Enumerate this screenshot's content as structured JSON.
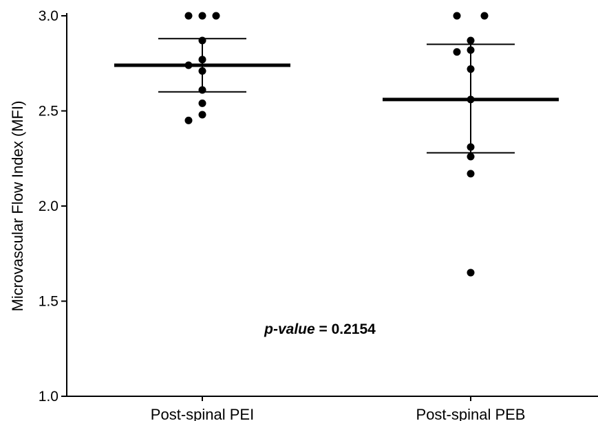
{
  "chart_data": {
    "type": "scatter",
    "ylabel": "Microvascular Flow Index (MFI)",
    "ylim": [
      1.0,
      3.0
    ],
    "yticks": [
      "1.0",
      "1.5",
      "2.0",
      "2.5",
      "3.0"
    ],
    "categories": [
      "Post-spinal PEI",
      "Post-spinal PEB"
    ],
    "groups": [
      {
        "category": "Post-spinal PEI",
        "mean": 2.74,
        "sd_low": 2.6,
        "sd_high": 2.88,
        "points": [
          3.0,
          3.0,
          3.0,
          2.87,
          2.77,
          2.74,
          2.71,
          2.61,
          2.54,
          2.48,
          2.45
        ]
      },
      {
        "category": "Post-spinal PEB",
        "mean": 2.56,
        "sd_low": 2.28,
        "sd_high": 2.85,
        "points": [
          3.0,
          3.0,
          2.87,
          2.82,
          2.81,
          2.72,
          2.56,
          2.31,
          2.26,
          2.17,
          1.65
        ]
      }
    ],
    "annotation": {
      "prefix": "p-value",
      "text": " = 0.2154"
    },
    "grid": false
  }
}
